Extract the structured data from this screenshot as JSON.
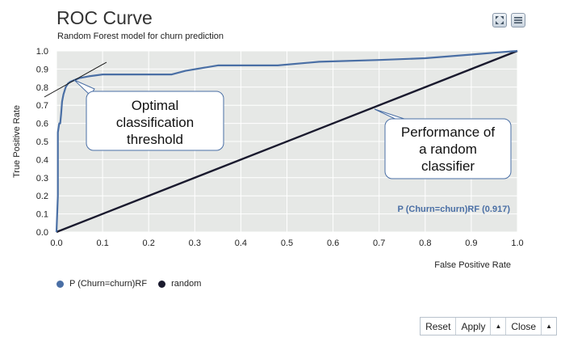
{
  "header": {
    "title": "ROC Curve",
    "subtitle": "Random Forest model for churn prediction"
  },
  "toolbar": {
    "icons": [
      "fullscreen-icon",
      "menu-icon"
    ]
  },
  "footer": {
    "reset_label": "Reset",
    "apply_label": "Apply",
    "close_label": "Close",
    "arrow_glyph": "▲"
  },
  "chart_data": {
    "type": "line",
    "title": "ROC Curve",
    "subtitle": "Random Forest model for churn prediction",
    "xlabel": "False Positive Rate",
    "ylabel": "True Positive Rate",
    "xlim": [
      0,
      1
    ],
    "ylim": [
      0,
      1
    ],
    "xticks": [
      "0.0",
      "0.1",
      "0.2",
      "0.3",
      "0.4",
      "0.5",
      "0.6",
      "0.7",
      "0.8",
      "0.9",
      "1.0"
    ],
    "yticks": [
      "0.0",
      "0.1",
      "0.2",
      "0.3",
      "0.4",
      "0.5",
      "0.6",
      "0.7",
      "0.8",
      "0.9",
      "1.0"
    ],
    "grid": true,
    "legend_position": "bottom-left",
    "series": [
      {
        "name": "P (Churn=churn)RF",
        "color": "#4a6fa5",
        "x": [
          0,
          0.003,
          0.003,
          0.006,
          0.008,
          0.01,
          0.012,
          0.015,
          0.02,
          0.025,
          0.03,
          0.04,
          0.05,
          0.07,
          0.1,
          0.15,
          0.2,
          0.25,
          0.28,
          0.35,
          0.48,
          0.57,
          0.7,
          0.8,
          0.9,
          0.95,
          1.0
        ],
        "y": [
          0,
          0.2,
          0.55,
          0.6,
          0.6,
          0.65,
          0.72,
          0.76,
          0.8,
          0.82,
          0.83,
          0.84,
          0.85,
          0.86,
          0.87,
          0.87,
          0.87,
          0.87,
          0.89,
          0.92,
          0.92,
          0.94,
          0.95,
          0.96,
          0.98,
          0.99,
          1.0
        ]
      },
      {
        "name": "random",
        "color": "#1a1a2e",
        "x": [
          0,
          1
        ],
        "y": [
          0,
          1
        ]
      }
    ],
    "annotations": [
      {
        "text": "Optimal classification threshold",
        "lines": [
          "Optimal",
          "classification",
          "threshold"
        ]
      },
      {
        "text": "Performance of a random classifier",
        "lines": [
          "Performance of",
          "a random",
          "classifier"
        ]
      },
      {
        "text": "P (Churn=churn)RF (0.917)"
      }
    ]
  }
}
